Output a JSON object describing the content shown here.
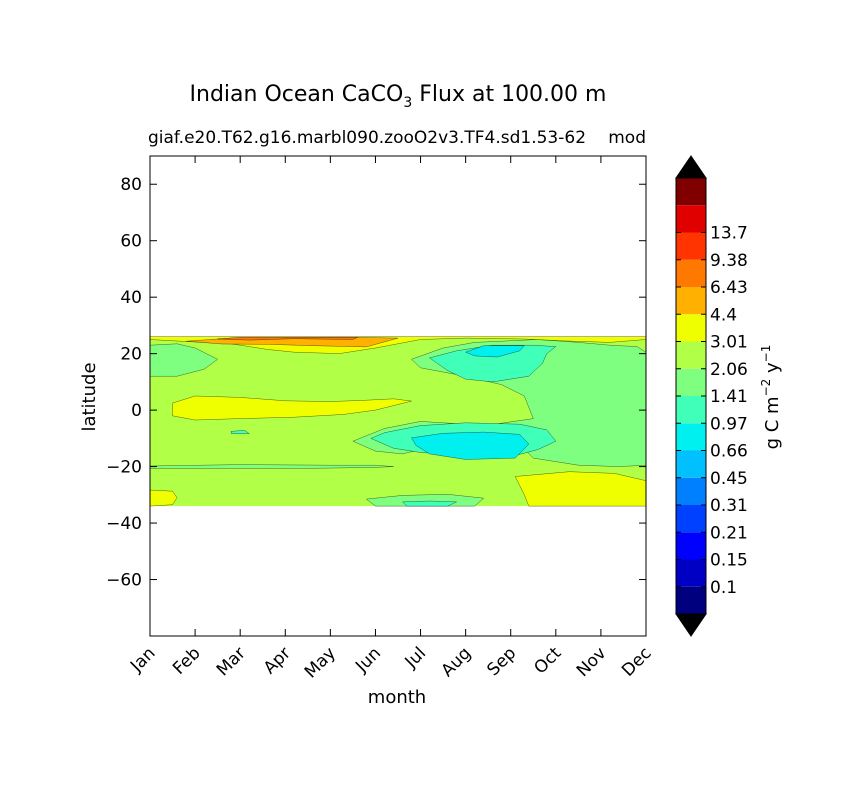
{
  "chart_data": {
    "type": "heatmap",
    "subtype": "filled-contour",
    "title_main": "Indian Ocean CaCO",
    "title_sub": "3",
    "title_rest": " Flux at 100.00 m",
    "subtitle_left": "giaf.e20.T62.g16.marbl090.zooO2v3.TF4.sd1.53-62",
    "subtitle_right": "mod",
    "xlabel": "month",
    "ylabel": "latitude",
    "x_categories": [
      "Jan",
      "Feb",
      "Mar",
      "Apr",
      "May",
      "Jun",
      "Jul",
      "Aug",
      "Sep",
      "Oct",
      "Nov",
      "Dec"
    ],
    "xlim": [
      0,
      11
    ],
    "ylim": [
      -80,
      90
    ],
    "y_ticks": [
      80,
      60,
      40,
      20,
      0,
      -20,
      -40,
      -60
    ],
    "y_tick_labels": [
      "80",
      "60",
      "40",
      "20",
      "0",
      "−20",
      "−40",
      "−60"
    ],
    "data_lat_range": [
      -34,
      26
    ],
    "colorbar": {
      "label_main": "g C m",
      "label_exp1": "−2",
      "label_mid": " y",
      "label_exp2": "−1",
      "levels": [
        "0.1",
        "0.15",
        "0.21",
        "0.31",
        "0.45",
        "0.66",
        "0.97",
        "1.41",
        "2.06",
        "3.01",
        "4.4",
        "6.43",
        "9.38",
        "13.7"
      ],
      "colors": [
        "#00007f",
        "#0000c5",
        "#0000ff",
        "#0040ff",
        "#0080ff",
        "#00c0ff",
        "#00f0f0",
        "#40ffb8",
        "#7fff7f",
        "#b2ff47",
        "#f0ff00",
        "#ffb000",
        "#ff7800",
        "#ff3400",
        "#e00000",
        "#800000"
      ],
      "extend_min_color": "#000000",
      "extend_max_color": "#000000"
    },
    "background_level_index": 9,
    "regions": [
      {
        "level": 8,
        "points": [
          [
            0,
            23
          ],
          [
            0.6,
            23.5
          ],
          [
            1.0,
            22
          ],
          [
            1.5,
            18
          ],
          [
            1.2,
            14.5
          ],
          [
            0.6,
            12
          ],
          [
            0,
            12
          ]
        ]
      },
      {
        "level": 8,
        "points": [
          [
            5.8,
            18
          ],
          [
            6.5,
            22
          ],
          [
            7.2,
            24
          ],
          [
            8.6,
            25
          ],
          [
            9.5,
            24
          ],
          [
            10.2,
            23
          ],
          [
            10.8,
            22.5
          ],
          [
            11,
            20.5
          ],
          [
            11,
            -19.5
          ],
          [
            10.4,
            -20
          ],
          [
            9.5,
            -19.5
          ],
          [
            8.5,
            -17
          ],
          [
            8.2,
            -12
          ],
          [
            7.8,
            -7.5
          ],
          [
            7.0,
            -5
          ],
          [
            6.0,
            -4
          ],
          [
            5.2,
            -6.5
          ],
          [
            4.5,
            -11
          ],
          [
            5.0,
            -14.5
          ],
          [
            5.6,
            -15.5
          ],
          [
            6.0,
            -14
          ],
          [
            6.4,
            -10
          ],
          [
            7.2,
            -6
          ],
          [
            8.5,
            -3
          ],
          [
            8.3,
            5
          ],
          [
            7.8,
            9
          ],
          [
            7.0,
            12
          ],
          [
            6.0,
            15
          ]
        ]
      },
      {
        "level": 8,
        "points": [
          [
            0,
            -19.8
          ],
          [
            2.0,
            -19.3
          ],
          [
            4.0,
            -19.5
          ],
          [
            5.0,
            -19.5
          ],
          [
            5.4,
            -20
          ],
          [
            5.0,
            -20.3
          ],
          [
            3.6,
            -20.6
          ],
          [
            1.8,
            -20.6
          ],
          [
            0,
            -20.6
          ]
        ]
      },
      {
        "level": 8,
        "points": [
          [
            4.8,
            -31.5
          ],
          [
            5.6,
            -30.2
          ],
          [
            6.6,
            -29.8
          ],
          [
            7.4,
            -31.2
          ],
          [
            7.2,
            -34
          ],
          [
            5.0,
            -34
          ]
        ]
      },
      {
        "level": 7,
        "points": [
          [
            6.2,
            18.5
          ],
          [
            6.8,
            21
          ],
          [
            7.6,
            23
          ],
          [
            8.5,
            23
          ],
          [
            9.0,
            22.5
          ],
          [
            8.8,
            20
          ],
          [
            8.7,
            16.5
          ],
          [
            8.4,
            12
          ],
          [
            7.6,
            10
          ],
          [
            7.0,
            11
          ],
          [
            6.6,
            14
          ]
        ]
      },
      {
        "level": 7,
        "points": [
          [
            4.9,
            -10
          ],
          [
            5.4,
            -13.5
          ],
          [
            6.0,
            -15
          ],
          [
            7.0,
            -16
          ],
          [
            8.0,
            -16.5
          ],
          [
            8.6,
            -14
          ],
          [
            9.0,
            -11
          ],
          [
            8.8,
            -7
          ],
          [
            8.2,
            -5
          ],
          [
            7.0,
            -4.5
          ],
          [
            6.0,
            -5.5
          ],
          [
            5.2,
            -8
          ]
        ]
      },
      {
        "level": 7,
        "points": [
          [
            5.6,
            -32.5
          ],
          [
            6.2,
            -32.2
          ],
          [
            6.8,
            -32.5
          ],
          [
            6.6,
            -34
          ],
          [
            5.7,
            -34
          ]
        ]
      },
      {
        "level": 7,
        "points": [
          [
            1.8,
            -7.5
          ],
          [
            2.1,
            -7.2
          ],
          [
            2.2,
            -8.3
          ],
          [
            1.8,
            -8.3
          ]
        ]
      },
      {
        "level": 6,
        "points": [
          [
            7.0,
            20.5
          ],
          [
            7.4,
            22.8
          ],
          [
            8.3,
            22.8
          ],
          [
            8.2,
            21
          ],
          [
            7.7,
            18.8
          ],
          [
            7.2,
            19.2
          ]
        ]
      },
      {
        "level": 6,
        "points": [
          [
            5.8,
            -9.8
          ],
          [
            6.5,
            -8.2
          ],
          [
            7.4,
            -7.8
          ],
          [
            8.2,
            -8.6
          ],
          [
            8.4,
            -12
          ],
          [
            8.1,
            -17
          ],
          [
            7.0,
            -17.5
          ],
          [
            6.2,
            -15.5
          ],
          [
            5.9,
            -12.5
          ]
        ]
      },
      {
        "level": 10,
        "points": [
          [
            0,
            26
          ],
          [
            11,
            26
          ],
          [
            11,
            25
          ],
          [
            10.2,
            24
          ],
          [
            9.2,
            24.5
          ],
          [
            8.3,
            25.2
          ],
          [
            7.0,
            25.5
          ],
          [
            6.0,
            25
          ],
          [
            5.0,
            22
          ],
          [
            4.2,
            20
          ],
          [
            3.2,
            20.5
          ],
          [
            2.6,
            21.5
          ],
          [
            1.8,
            23.5
          ],
          [
            0.8,
            24.3
          ],
          [
            0,
            25
          ]
        ]
      },
      {
        "level": 10,
        "points": [
          [
            0.5,
            2.5
          ],
          [
            1.0,
            5
          ],
          [
            2.0,
            4.5
          ],
          [
            3.0,
            3.3
          ],
          [
            4.0,
            3
          ],
          [
            4.8,
            3.5
          ],
          [
            5.4,
            4
          ],
          [
            5.8,
            3.2
          ],
          [
            5.0,
            0
          ],
          [
            4.3,
            -1.5
          ],
          [
            3.2,
            -2.5
          ],
          [
            2.0,
            -3
          ],
          [
            1.0,
            -3.5
          ],
          [
            0.5,
            -2
          ]
        ]
      },
      {
        "level": 10,
        "points": [
          [
            0,
            -28.3
          ],
          [
            0.5,
            -28.7
          ],
          [
            0.6,
            -31
          ],
          [
            0.5,
            -33.5
          ],
          [
            0,
            -34
          ]
        ]
      },
      {
        "level": 10,
        "points": [
          [
            8.1,
            -23.5
          ],
          [
            9.3,
            -21.8
          ],
          [
            10.3,
            -22.4
          ],
          [
            11,
            -25
          ],
          [
            11,
            -34
          ],
          [
            8.4,
            -34
          ],
          [
            8.3,
            -30
          ]
        ]
      },
      {
        "level": 11,
        "points": [
          [
            0.8,
            24.4
          ],
          [
            1.8,
            25.5
          ],
          [
            4.4,
            25.8
          ],
          [
            5.5,
            25.5
          ],
          [
            4.8,
            22.4
          ],
          [
            3.6,
            22.8
          ],
          [
            2.6,
            23.3
          ],
          [
            1.6,
            23.4
          ]
        ]
      },
      {
        "level": 12,
        "points": [
          [
            1.5,
            25.2
          ],
          [
            2.0,
            25.8
          ],
          [
            4.6,
            25.8
          ],
          [
            4.5,
            25.0
          ],
          [
            3.2,
            25.3
          ],
          [
            2.2,
            24.8
          ]
        ]
      }
    ]
  }
}
